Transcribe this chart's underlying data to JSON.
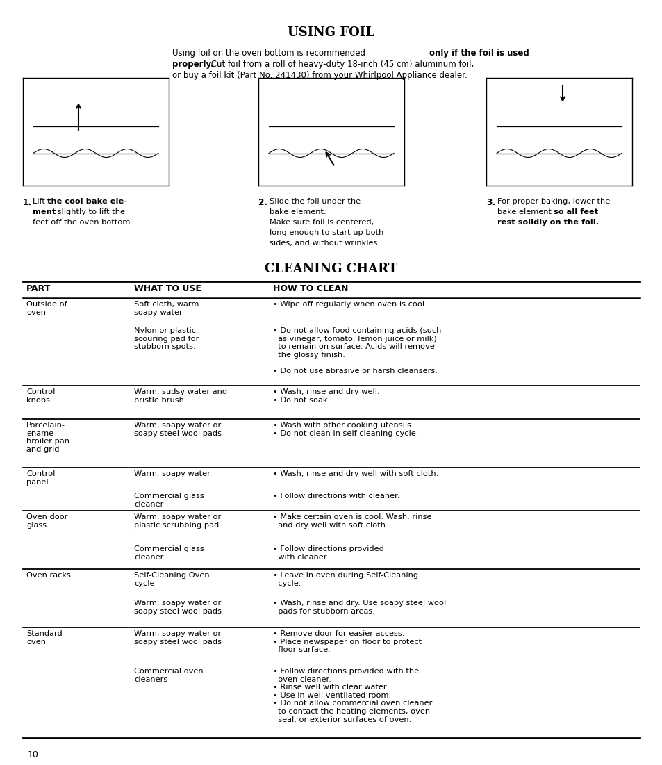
{
  "title_foil": "USING FOIL",
  "intro_line1_normal": "Using foil on the oven bottom is recommended ",
  "intro_line1_bold": "only if the foil is used",
  "intro_line2_bold": "properly.",
  "intro_line2_normal": " Cut foil from a roll of heavy-duty 18-inch (45 cm) aluminum foil,",
  "intro_line3": "or buy a foil kit (Part No. 241430) from your Whirlpool Appliance dealer.",
  "step1_num": "1.",
  "step1_pre": "Lift ",
  "step1_bold": "the cool bake ele-\nment",
  "step1_normal": " slightly to lift the\nfeet off the oven bottom.",
  "step2_num": "2.",
  "step2_text": "Slide the foil under the\nbake element.\nMake sure foil is centered,\nlong enough to start up both\nsides, and without wrinkles.",
  "step3_num": "3.",
  "step3_normal": "For proper baking, lower the\nbake element ",
  "step3_bold": "so all feet\nrest solidly on the foil.",
  "title_cleaning": "CLEANING CHART",
  "col_headers": [
    "PART",
    "WHAT TO USE",
    "HOW TO CLEAN"
  ],
  "table_rows": [
    {
      "part": "Outside of\noven",
      "what": "Soft cloth, warm\nsoapy water",
      "how": "• Wipe off regularly when oven is cool.",
      "sep_before": true
    },
    {
      "part": "",
      "what": "Nylon or plastic\nscouring pad for\nstubborn spots.",
      "how": "• Do not allow food containing acids (such\n  as vinegar, tomato, lemon juice or milk)\n  to remain on surface. Acids will remove\n  the glossy finish.\n\n• Do not use abrasive or harsh cleansers.",
      "sep_before": false
    },
    {
      "part": "Control\nknobs",
      "what": "Warm, sudsy water and\nbristle brush",
      "how": "• Wash, rinse and dry well.\n• Do not soak.",
      "sep_before": true
    },
    {
      "part": "Porcelain-\nename\nbroiler pan\nand grid",
      "what": "Warm, soapy water or\nsoapy steel wool pads",
      "how": "• Wash with other cooking utensils.\n• Do not clean in self-cleaning cycle.",
      "sep_before": true
    },
    {
      "part": "Control\npanel",
      "what": "Warm, soapy water",
      "how": "• Wash, rinse and dry well with soft cloth.",
      "sep_before": true
    },
    {
      "part": "",
      "what": "Commercial glass\ncleaner",
      "how": "• Follow directions with cleaner.",
      "sep_before": false
    },
    {
      "part": "Oven door\nglass",
      "what": "Warm, soapy water or\nplastic scrubbing pad",
      "how": "• Make certain oven is cool. Wash, rinse\n  and dry well with soft cloth.",
      "sep_before": true
    },
    {
      "part": "",
      "what": "Commercial glass\ncleaner",
      "how": "• Follow directions provided\n  with cleaner.",
      "sep_before": false
    },
    {
      "part": "Oven racks",
      "what": "Self-Cleaning Oven\ncycle",
      "how": "• Leave in oven during Self-Cleaning\n  cycle.",
      "sep_before": true
    },
    {
      "part": "",
      "what": "Warm, soapy water or\nsoapy steel wool pads",
      "how": "• Wash, rinse and dry. Use soapy steel wool\n  pads for stubborn areas.",
      "sep_before": false
    },
    {
      "part": "Standard\noven",
      "what": "Warm, soapy water or\nsoapy steel wool pads",
      "how": "• Remove door for easier access.\n• Place newspaper on floor to protect\n  floor surface.",
      "sep_before": true
    },
    {
      "part": "",
      "what": "Commercial oven\ncleaners",
      "how": "• Follow directions provided with the\n  oven cleaner.\n• Rinse well with clear water.\n• Use in well ventilated room.\n• Do not allow commercial oven cleaner\n  to contact the heating elements, oven\n  seal, or exterior surfaces of oven.",
      "sep_before": false
    }
  ],
  "page_number": "10",
  "bg_color": "#ffffff"
}
